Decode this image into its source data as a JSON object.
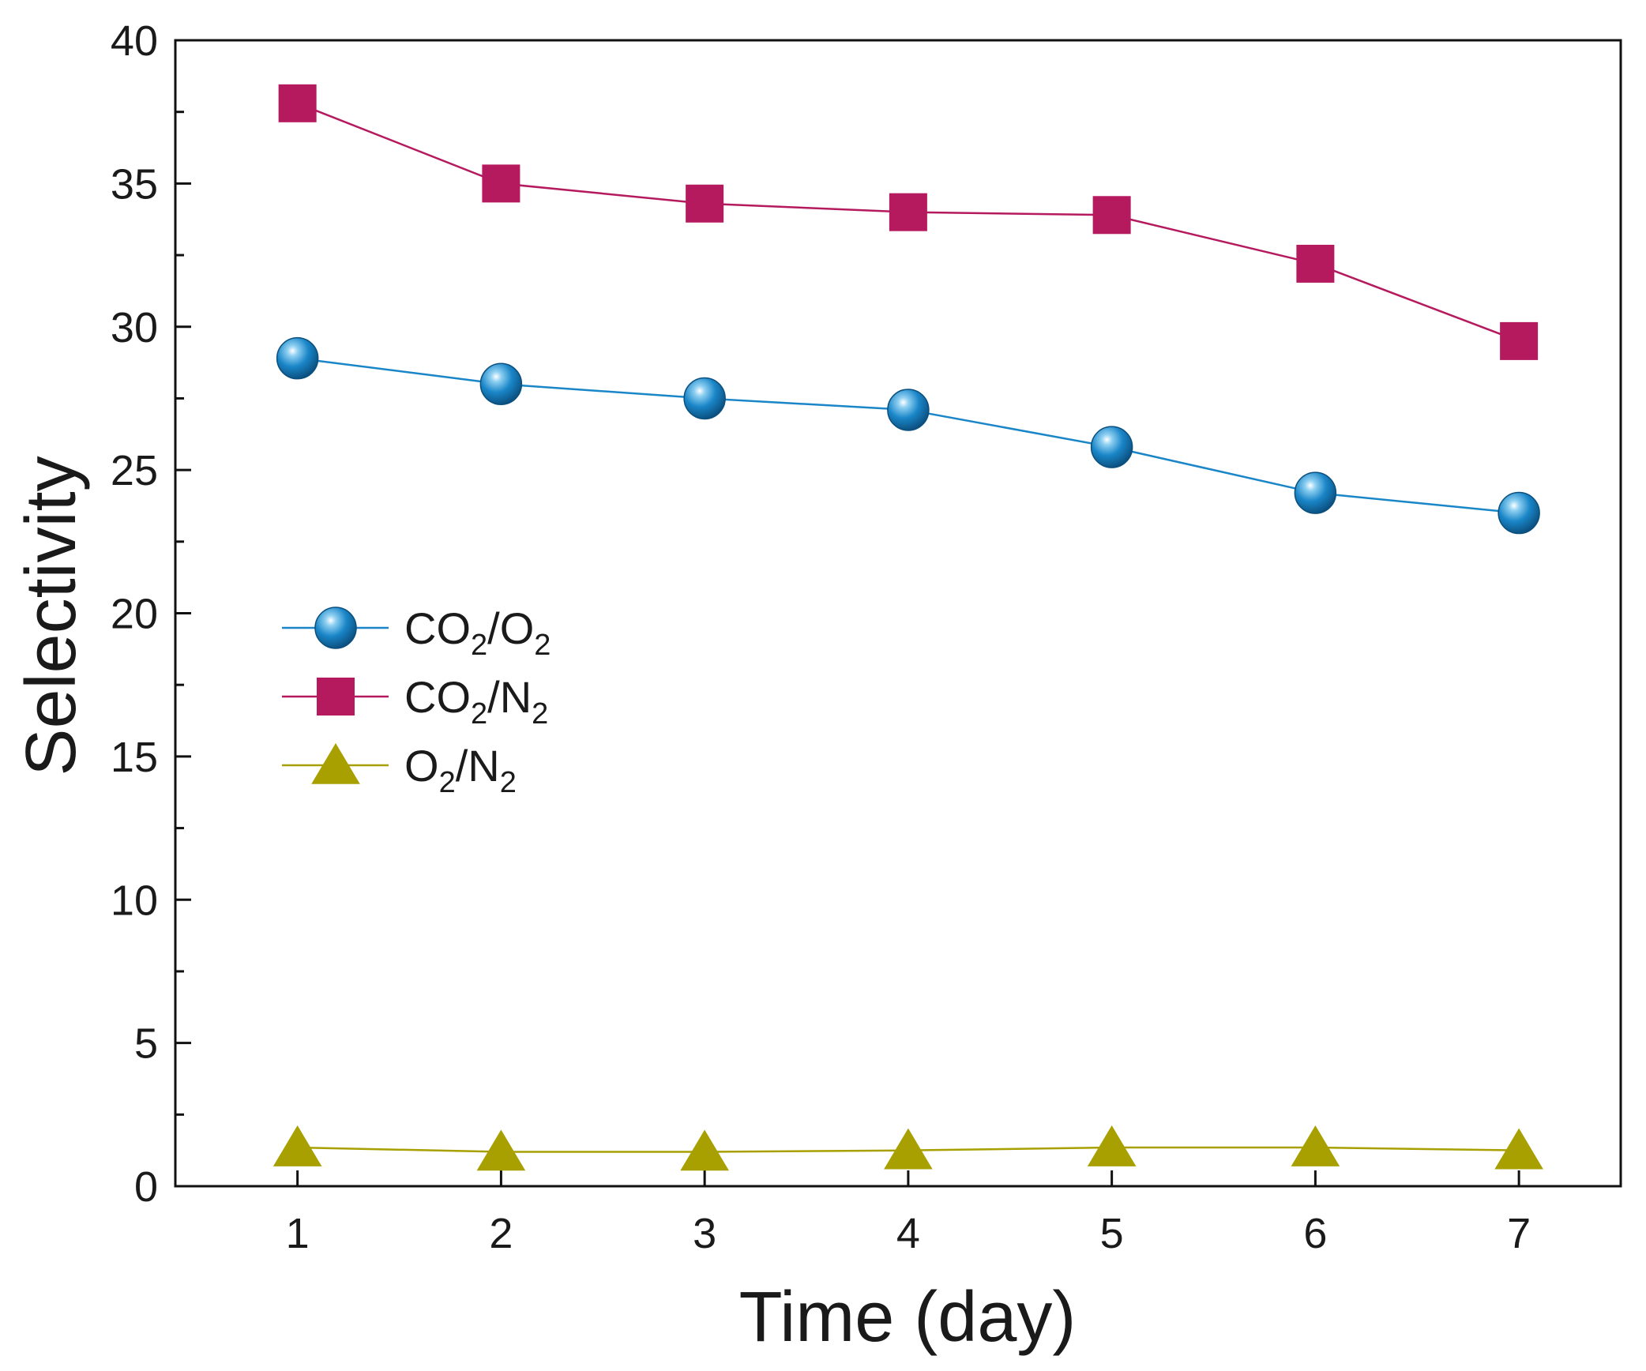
{
  "chart_data": {
    "type": "line",
    "xlabel": "Time (day)",
    "ylabel": "Selectivity",
    "x": [
      1,
      2,
      3,
      4,
      5,
      6,
      7
    ],
    "xlim": [
      0.4,
      7.5
    ],
    "ylim": [
      0,
      40
    ],
    "xticks": [
      1,
      2,
      3,
      4,
      5,
      6,
      7
    ],
    "yticks": [
      0,
      5,
      10,
      15,
      20,
      25,
      30,
      35,
      40
    ],
    "grid": false,
    "legend_position": "middle-left",
    "series": [
      {
        "name": "CO2/O2",
        "label_parts": [
          [
            "CO",
            false
          ],
          [
            "2",
            true
          ],
          [
            "/O",
            false
          ],
          [
            "2",
            true
          ]
        ],
        "marker": "circle",
        "color": "#1a86c8",
        "values": [
          28.9,
          28.0,
          27.5,
          27.1,
          25.8,
          24.2,
          23.5
        ]
      },
      {
        "name": "CO2/N2",
        "label_parts": [
          [
            "CO",
            false
          ],
          [
            "2",
            true
          ],
          [
            "/N",
            false
          ],
          [
            "2",
            true
          ]
        ],
        "marker": "square",
        "color": "#b5195e",
        "values": [
          37.8,
          35.0,
          34.3,
          34.0,
          33.9,
          32.2,
          29.5
        ]
      },
      {
        "name": "O2/N2",
        "label_parts": [
          [
            "O",
            false
          ],
          [
            "2",
            true
          ],
          [
            "/N",
            false
          ],
          [
            "2",
            true
          ]
        ],
        "marker": "triangle",
        "color": "#a8a000",
        "values": [
          1.35,
          1.2,
          1.2,
          1.25,
          1.35,
          1.35,
          1.25
        ]
      }
    ]
  }
}
